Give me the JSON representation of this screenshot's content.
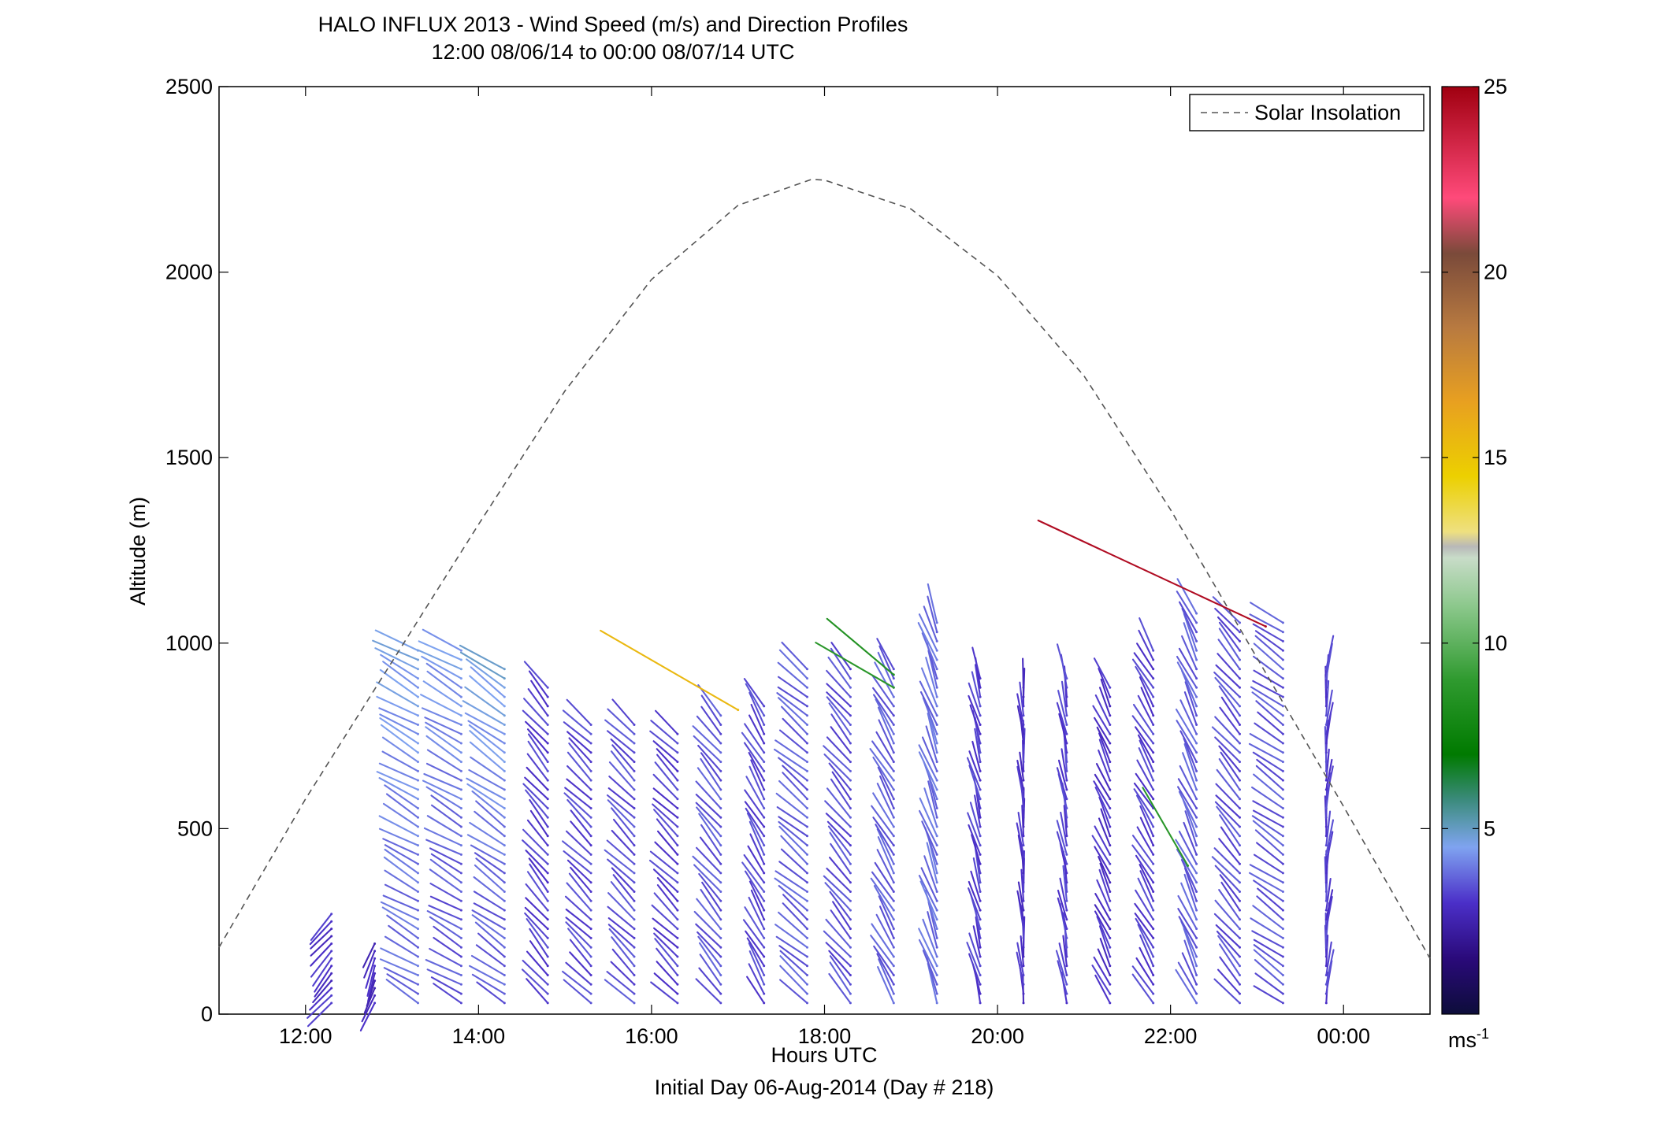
{
  "chart_data": {
    "type": "scatter",
    "subtype": "wind-barb-profiles",
    "title": "HALO INFLUX 2013 - Wind Speed (m/s) and Direction Profiles",
    "subtitle": "12:00 08/06/14 to 00:00 08/07/14  UTC",
    "xlabel": "Hours UTC",
    "xlabel2": "Initial Day 06-Aug-2014 (Day # 218)",
    "ylabel": "Altitude (m)",
    "xlim": [
      11,
      25
    ],
    "ylim": [
      0,
      2500
    ],
    "xticks": [
      {
        "value": 12,
        "label": "12:00"
      },
      {
        "value": 14,
        "label": "14:00"
      },
      {
        "value": 16,
        "label": "16:00"
      },
      {
        "value": 18,
        "label": "18:00"
      },
      {
        "value": 20,
        "label": "20:00"
      },
      {
        "value": 22,
        "label": "22:00"
      },
      {
        "value": 24,
        "label": "00:00"
      }
    ],
    "yticks": [
      {
        "value": 0,
        "label": "0"
      },
      {
        "value": 500,
        "label": "500"
      },
      {
        "value": 1000,
        "label": "1000"
      },
      {
        "value": 1500,
        "label": "1500"
      },
      {
        "value": 2000,
        "label": "2000"
      },
      {
        "value": 2500,
        "label": "2500"
      }
    ],
    "legend": {
      "label": "Solar Insolation",
      "position": "top-right",
      "style": "dashed",
      "color": "#555555"
    },
    "solar_insolation": {
      "peak_time": 17.85,
      "peak_altitude": 2250,
      "x": [
        11,
        12,
        13,
        14,
        15,
        16,
        17,
        17.85,
        18,
        19,
        20,
        21,
        22,
        23,
        24,
        25
      ],
      "y": [
        180,
        580,
        950,
        1320,
        1680,
        1980,
        2180,
        2250,
        2248,
        2170,
        1990,
        1720,
        1360,
        960,
        560,
        150
      ]
    },
    "colorbar": {
      "label": "ms",
      "label_sup": "-1",
      "min": 0,
      "max": 25,
      "ticks": [
        {
          "value": 5,
          "label": "5"
        },
        {
          "value": 10,
          "label": "10"
        },
        {
          "value": 15,
          "label": "15"
        },
        {
          "value": 20,
          "label": "20"
        },
        {
          "value": 25,
          "label": "25"
        }
      ],
      "stops": [
        {
          "v": 0,
          "c": "#0d0d3a"
        },
        {
          "v": 1.5,
          "c": "#2a0a7a"
        },
        {
          "v": 3,
          "c": "#4b2fc8"
        },
        {
          "v": 4.5,
          "c": "#7fa3f0"
        },
        {
          "v": 5.2,
          "c": "#5a98b0"
        },
        {
          "v": 5.8,
          "c": "#3a8a7a"
        },
        {
          "v": 7,
          "c": "#007a00"
        },
        {
          "v": 9,
          "c": "#2f9a2f"
        },
        {
          "v": 11,
          "c": "#8cc88c"
        },
        {
          "v": 12.3,
          "c": "#c8dcc8"
        },
        {
          "v": 12.6,
          "c": "#b8b8b8"
        },
        {
          "v": 13,
          "c": "#eee080"
        },
        {
          "v": 14.5,
          "c": "#ecd000"
        },
        {
          "v": 16.5,
          "c": "#e8a020"
        },
        {
          "v": 18.5,
          "c": "#b87a40"
        },
        {
          "v": 20.5,
          "c": "#7a4a3a"
        },
        {
          "v": 22,
          "c": "#ff4a7a"
        },
        {
          "v": 25,
          "c": "#a00010"
        }
      ]
    },
    "profiles": [
      {
        "time": 12.3,
        "top": 270,
        "alt_min": 30,
        "step": 20,
        "dir": 220,
        "speed": 3.0
      },
      {
        "time": 12.8,
        "top": 190,
        "alt_min": 30,
        "step": 20,
        "dir": 200,
        "speed": 2.8
      },
      {
        "time": 13.3,
        "top": 1000,
        "alt_min": 30,
        "step": 25,
        "dir": 300,
        "speed": 3.8,
        "upper_speed": 4.6
      },
      {
        "time": 13.8,
        "top": 1000,
        "alt_min": 30,
        "step": 25,
        "dir": 300,
        "speed": 3.5,
        "upper_speed": 4.5
      },
      {
        "time": 14.3,
        "top": 950,
        "alt_min": 30,
        "step": 25,
        "dir": 305,
        "speed": 3.6,
        "upper_speed": 4.8
      },
      {
        "time": 14.8,
        "top": 880,
        "alt_min": 30,
        "step": 25,
        "dir": 320,
        "speed": 3.2
      },
      {
        "time": 15.3,
        "top": 800,
        "alt_min": 30,
        "step": 25,
        "dir": 315,
        "speed": 3.3
      },
      {
        "time": 15.8,
        "top": 800,
        "alt_min": 30,
        "step": 25,
        "dir": 315,
        "speed": 3.4
      },
      {
        "time": 16.3,
        "top": 760,
        "alt_min": 30,
        "step": 25,
        "dir": 315,
        "speed": 3.2
      },
      {
        "time": 16.8,
        "top": 810,
        "alt_min": 30,
        "step": 25,
        "dir": 320,
        "speed": 3.5
      },
      {
        "time": 17.3,
        "top": 840,
        "alt_min": 30,
        "step": 25,
        "dir": 330,
        "speed": 3.3
      },
      {
        "time": 17.8,
        "top": 940,
        "alt_min": 30,
        "step": 25,
        "dir": 310,
        "speed": 3.6
      },
      {
        "time": 18.3,
        "top": 940,
        "alt_min": 30,
        "step": 25,
        "dir": 320,
        "speed": 3.4
      },
      {
        "time": 18.8,
        "top": 940,
        "alt_min": 30,
        "step": 25,
        "dir": 330,
        "speed": 3.6
      },
      {
        "time": 19.3,
        "top": 1060,
        "alt_min": 30,
        "step": 25,
        "dir": 340,
        "speed": 3.8
      },
      {
        "time": 19.8,
        "top": 910,
        "alt_min": 30,
        "step": 25,
        "dir": 345,
        "speed": 3.2
      },
      {
        "time": 20.3,
        "top": 890,
        "alt_min": 30,
        "step": 25,
        "dir": 355,
        "speed": 3.0
      },
      {
        "time": 20.8,
        "top": 910,
        "alt_min": 30,
        "step": 25,
        "dir": 350,
        "speed": 3.2
      },
      {
        "time": 21.3,
        "top": 880,
        "alt_min": 30,
        "step": 25,
        "dir": 335,
        "speed": 3.0
      },
      {
        "time": 21.8,
        "top": 980,
        "alt_min": 30,
        "step": 25,
        "dir": 330,
        "speed": 3.2
      },
      {
        "time": 22.3,
        "top": 1100,
        "alt_min": 30,
        "step": 25,
        "dir": 335,
        "speed": 3.6
      },
      {
        "time": 22.8,
        "top": 1060,
        "alt_min": 30,
        "step": 25,
        "dir": 320,
        "speed": 3.4
      },
      {
        "time": 23.3,
        "top": 1060,
        "alt_min": 30,
        "step": 25,
        "dir": 305,
        "speed": 3.5
      },
      {
        "time": 23.8,
        "top": 940,
        "alt_min": 30,
        "step": 25,
        "dir": 5,
        "speed": 3.2
      }
    ],
    "highlights": [
      {
        "time": 17.0,
        "alt": 820,
        "dir": 300,
        "speed": 15.5
      },
      {
        "time": 18.8,
        "alt": 880,
        "dir": 300,
        "speed": 8.8
      },
      {
        "time": 18.8,
        "alt": 915,
        "dir": 310,
        "speed": 8.5
      },
      {
        "time": 23.1,
        "alt": 1045,
        "dir": 295,
        "speed": 24.5
      },
      {
        "time": 22.2,
        "alt": 400,
        "dir": 330,
        "speed": 8.8
      }
    ]
  }
}
